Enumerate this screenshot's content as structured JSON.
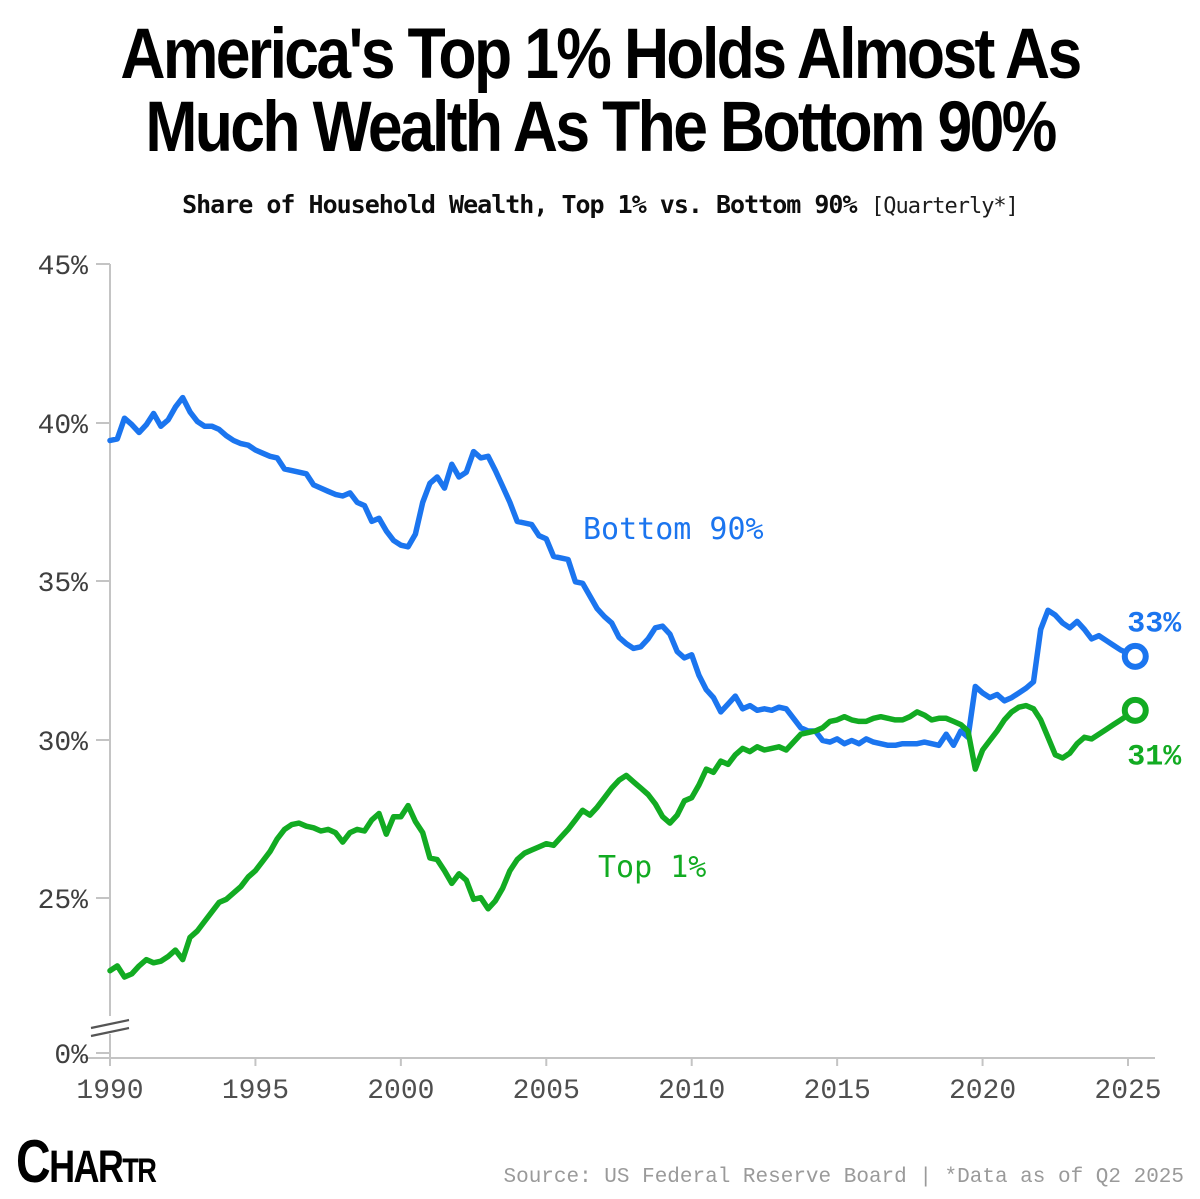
{
  "title": {
    "line1": "America's Top 1% Holds Almost As",
    "line2": "Much Wealth As The Bottom 90%"
  },
  "subtitle": {
    "text": "Share of Household Wealth, Top 1% vs. Bottom 90%",
    "note": "[Quarterly*]"
  },
  "footer": {
    "logo_letters": [
      "C",
      "H",
      "A",
      "R",
      "T",
      "R"
    ],
    "source_text": "Source: US Federal Reserve Board | *Data as of Q2 2025"
  },
  "chart_data": {
    "type": "line",
    "title": "Share of Household Wealth, Top 1% vs. Bottom 90% [Quarterly]",
    "x_start": 1990.0,
    "x_step": 0.25,
    "x_end": 2025.25,
    "x_ticks": [
      "1990",
      "1995",
      "2000",
      "2005",
      "2010",
      "2015",
      "2020",
      "2025"
    ],
    "x_tick_years": [
      1990,
      1995,
      2000,
      2005,
      2010,
      2015,
      2020,
      2025
    ],
    "y_ticks": [
      "45%",
      "40%",
      "35%",
      "30%",
      "25%",
      "0%"
    ],
    "y_tick_values": [
      45,
      40,
      35,
      30,
      25,
      0
    ],
    "y_axis_break": true,
    "grid": false,
    "legend": "inline-labels",
    "axis_color": "#c4c4c4",
    "tick_label_color_y": "#3f3f3f",
    "tick_label_color_x": "#4f4f4f",
    "series": [
      {
        "name": "Bottom 90%",
        "color": "#1b75ef",
        "end_label": "33%",
        "values": [
          39.45,
          39.5,
          40.15,
          39.95,
          39.7,
          39.95,
          40.3,
          39.9,
          40.1,
          40.5,
          40.8,
          40.35,
          40.05,
          39.9,
          39.9,
          39.8,
          39.6,
          39.45,
          39.35,
          39.3,
          39.15,
          39.05,
          38.95,
          38.9,
          38.55,
          38.5,
          38.45,
          38.4,
          38.05,
          37.95,
          37.85,
          37.75,
          37.7,
          37.8,
          37.5,
          37.4,
          36.9,
          37.0,
          36.6,
          36.3,
          36.15,
          36.1,
          36.5,
          37.5,
          38.1,
          38.3,
          37.95,
          38.7,
          38.3,
          38.45,
          39.1,
          38.9,
          38.95,
          38.5,
          38.0,
          37.5,
          36.9,
          36.85,
          36.8,
          36.45,
          36.35,
          35.8,
          35.75,
          35.7,
          35.0,
          34.95,
          34.55,
          34.15,
          33.9,
          33.7,
          33.25,
          33.05,
          32.9,
          32.95,
          33.2,
          33.55,
          33.6,
          33.35,
          32.8,
          32.6,
          32.7,
          32.05,
          31.6,
          31.35,
          30.9,
          31.15,
          31.4,
          31.0,
          31.1,
          30.95,
          31.0,
          30.95,
          31.05,
          31.0,
          30.7,
          30.4,
          30.3,
          30.3,
          30.0,
          29.95,
          30.05,
          29.9,
          30.0,
          29.9,
          30.05,
          29.95,
          29.9,
          29.85,
          29.85,
          29.9,
          29.9,
          29.9,
          29.95,
          29.9,
          29.85,
          30.2,
          29.85,
          30.3,
          30.1,
          31.7,
          31.5,
          31.35,
          31.45,
          31.25,
          31.35,
          31.5,
          31.65,
          31.85,
          33.5,
          34.1,
          33.95,
          33.7,
          33.55,
          33.75,
          33.5,
          33.2,
          33.3,
          33.15,
          33.0,
          32.85,
          32.75,
          32.65
        ]
      },
      {
        "name": "Top 1%",
        "color": "#12ab22",
        "end_label": "31%",
        "values": [
          22.75,
          22.9,
          22.55,
          22.65,
          22.9,
          23.1,
          23.0,
          23.05,
          23.2,
          23.4,
          23.1,
          23.8,
          24.0,
          24.3,
          24.6,
          24.9,
          25.0,
          25.2,
          25.4,
          25.7,
          25.9,
          26.2,
          26.5,
          26.9,
          27.2,
          27.35,
          27.4,
          27.3,
          27.25,
          27.15,
          27.2,
          27.1,
          26.8,
          27.1,
          27.2,
          27.15,
          27.5,
          27.7,
          27.05,
          27.6,
          27.6,
          27.95,
          27.45,
          27.1,
          26.3,
          26.25,
          25.9,
          25.5,
          25.8,
          25.6,
          25.0,
          25.05,
          24.7,
          24.95,
          25.35,
          25.9,
          26.25,
          26.45,
          26.55,
          26.65,
          26.75,
          26.7,
          26.95,
          27.2,
          27.5,
          27.8,
          27.65,
          27.9,
          28.2,
          28.5,
          28.75,
          28.9,
          28.7,
          28.5,
          28.3,
          28.0,
          27.6,
          27.4,
          27.65,
          28.1,
          28.2,
          28.6,
          29.1,
          29.0,
          29.35,
          29.25,
          29.55,
          29.75,
          29.65,
          29.8,
          29.7,
          29.75,
          29.8,
          29.7,
          29.95,
          30.2,
          30.25,
          30.3,
          30.4,
          30.6,
          30.65,
          30.75,
          30.65,
          30.6,
          30.6,
          30.7,
          30.75,
          30.7,
          30.65,
          30.65,
          30.75,
          30.9,
          30.8,
          30.65,
          30.7,
          30.7,
          30.6,
          30.5,
          30.3,
          29.1,
          29.7,
          30.0,
          30.3,
          30.65,
          30.9,
          31.05,
          31.1,
          31.0,
          30.65,
          30.1,
          29.55,
          29.45,
          29.6,
          29.9,
          30.1,
          30.05,
          30.2,
          30.35,
          30.5,
          30.65,
          30.8,
          30.95
        ]
      }
    ]
  }
}
